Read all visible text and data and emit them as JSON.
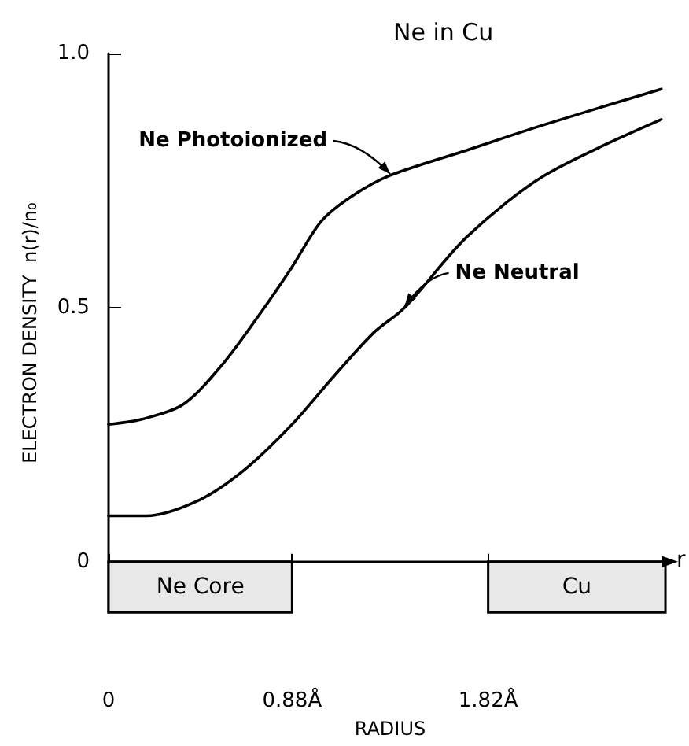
{
  "chart_data": {
    "type": "line",
    "title": "Ne in Cu",
    "xlabel": "RADIUS",
    "ylabel": "ELECTRON DENSITY  n(r)/n₀",
    "xlim": [
      0,
      2.7
    ],
    "ylim": [
      -0.1,
      1.0
    ],
    "xticks": [
      0,
      {
        "value": 0.88,
        "label": "0.88Å"
      },
      {
        "value": 1.82,
        "label": "1.82Å"
      }
    ],
    "yticks": [
      0,
      0.5,
      {
        "value": 1.0,
        "label": "1.0"
      }
    ],
    "marker": "none",
    "line_style": "solid",
    "series": [
      {
        "color": "#000000",
        "x": [
          0,
          0.16,
          0.36,
          0.55,
          0.73,
          0.88,
          1.02,
          1.17,
          1.35,
          1.72,
          2.09,
          2.65
        ],
        "values": [
          0.27,
          0.28,
          0.31,
          0.39,
          0.49,
          0.58,
          0.67,
          0.72,
          0.76,
          0.81,
          0.86,
          0.93
        ]
      },
      {
        "color": "#000000",
        "x": [
          0,
          0.18,
          0.43,
          0.65,
          0.88,
          1.07,
          1.27,
          1.42,
          1.72,
          2.09,
          2.65
        ],
        "values": [
          0.09,
          0.09,
          0.12,
          0.18,
          0.27,
          0.36,
          0.45,
          0.5,
          0.64,
          0.76,
          0.87
        ]
      }
    ],
    "bands": [
      {
        "axis": "x",
        "from": 0,
        "to": 0.88,
        "label": "Ne Core"
      },
      {
        "axis": "x",
        "from": 1.82,
        "to": 2.67,
        "label": "Cu"
      }
    ],
    "annotations": [
      {
        "text": "Ne Photoionized",
        "x": 1.35,
        "y": 0.76
      },
      {
        "text": "Ne Neutral",
        "x": 1.42,
        "y": 0.5
      },
      {
        "text": "r",
        "x": 2.7,
        "y": 0
      }
    ]
  }
}
